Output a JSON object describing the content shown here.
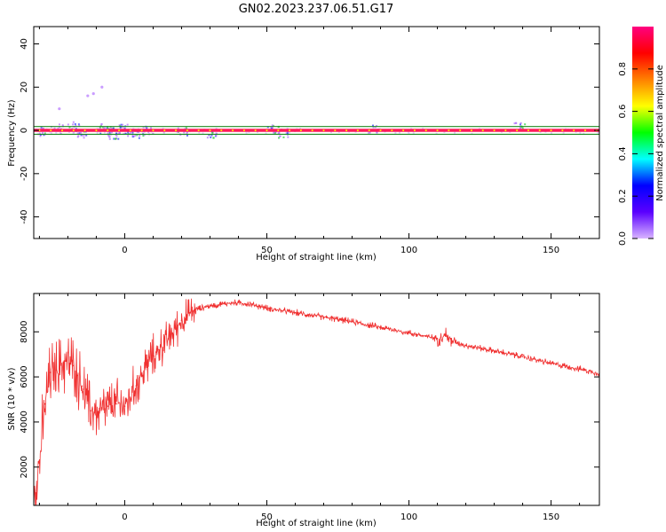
{
  "figure_title": "GN02.2023.237.06.51.G17",
  "colors": {
    "snr_line": "#f03030",
    "trace_line": "#ff1a5a",
    "band_line": "#208a20",
    "scatter_purple": "#b473ff",
    "scatter_blue": "#3240ff",
    "scatter_green": "#30d040"
  },
  "chart_data": [
    {
      "type": "heatmap",
      "subtype": "spectrogram",
      "title": "",
      "xlabel": "Height of straight line (km)",
      "ylabel": "Frequency (Hz)",
      "xlim": [
        -32,
        167
      ],
      "ylim": [
        -50,
        48
      ],
      "xticks": [
        0,
        50,
        100,
        150
      ],
      "xtick_labels": [
        "0",
        "50",
        "100",
        "150"
      ],
      "yticks": [
        -40,
        -20,
        0,
        20,
        40
      ],
      "ytick_labels": [
        "-40",
        "-20",
        "0",
        "20",
        "40"
      ],
      "grid": false,
      "dominant_frequency_hz": 0,
      "band_frequencies_hz": [
        -1.8,
        1.8
      ],
      "colorbar": {
        "label": "Normalized spectral amplitude",
        "range": [
          0,
          1
        ],
        "ticks": [
          0.0,
          0.2,
          0.4,
          0.6,
          0.8
        ],
        "tick_labels": [
          "0.0",
          "0.2",
          "0.4",
          "0.6",
          "0.8"
        ],
        "colormap_stops": [
          "#d8b4ff",
          "#5a00ff",
          "#0000ff",
          "#00ffff",
          "#00ff00",
          "#ffff00",
          "#ff8000",
          "#ff0000",
          "#ff0080"
        ]
      },
      "noise_clusters": [
        {
          "x": -30,
          "y": 0,
          "amp": 0.15
        },
        {
          "x": -24,
          "y": 1,
          "amp": 0.12
        },
        {
          "x": -18,
          "y": 2,
          "amp": 0.14
        },
        {
          "x": -15,
          "y": -1,
          "amp": 0.1
        },
        {
          "x": -7,
          "y": 1,
          "amp": 0.2
        },
        {
          "x": -4,
          "y": -1,
          "amp": 0.22
        },
        {
          "x": 0,
          "y": 1,
          "amp": 0.18
        },
        {
          "x": 3,
          "y": -1,
          "amp": 0.15
        },
        {
          "x": 7,
          "y": 0,
          "amp": 0.12
        },
        {
          "x": 20,
          "y": 0,
          "amp": 0.08
        },
        {
          "x": 31,
          "y": -1,
          "amp": 0.1
        },
        {
          "x": 52,
          "y": 1,
          "amp": 0.1
        },
        {
          "x": 56,
          "y": -1,
          "amp": 0.12
        },
        {
          "x": 88,
          "y": 1,
          "amp": 0.05
        },
        {
          "x": 139,
          "y": 2,
          "amp": 0.06
        }
      ],
      "outliers": [
        {
          "x": -13,
          "y": 16
        },
        {
          "x": -11,
          "y": 17
        },
        {
          "x": -8,
          "y": 20
        },
        {
          "x": -23,
          "y": 10
        }
      ]
    },
    {
      "type": "line",
      "title": "",
      "xlabel": "Height of straight line (km)",
      "ylabel": "SNR (10 * v/v)",
      "xlim": [
        -32,
        167
      ],
      "ylim": [
        300,
        9700
      ],
      "xticks": [
        0,
        50,
        100,
        150
      ],
      "xtick_labels": [
        "0",
        "50",
        "100",
        "150"
      ],
      "yticks": [
        2000,
        4000,
        6000,
        8000
      ],
      "ytick_labels": [
        "2000",
        "4000",
        "6000",
        "8000"
      ],
      "grid": false,
      "series": [
        {
          "x": [
            -32,
            -30,
            -28,
            -26,
            -24,
            -21,
            -18,
            -15,
            -12,
            -9,
            -6,
            -3,
            0,
            4,
            8,
            12,
            16,
            20,
            25,
            30,
            35,
            40,
            45,
            50,
            60,
            70,
            80,
            90,
            100,
            106,
            110,
            113,
            115,
            120,
            130,
            140,
            150,
            160,
            167
          ],
          "y": [
            800,
            2200,
            4800,
            6200,
            6300,
            6700,
            6500,
            5600,
            4500,
            4400,
            4700,
            4800,
            4700,
            5600,
            6600,
            7200,
            7800,
            8500,
            9000,
            9150,
            9250,
            9300,
            9200,
            9050,
            8850,
            8650,
            8450,
            8200,
            7950,
            7800,
            7700,
            7850,
            7600,
            7400,
            7150,
            6900,
            6600,
            6350,
            6150
          ]
        }
      ]
    }
  ]
}
